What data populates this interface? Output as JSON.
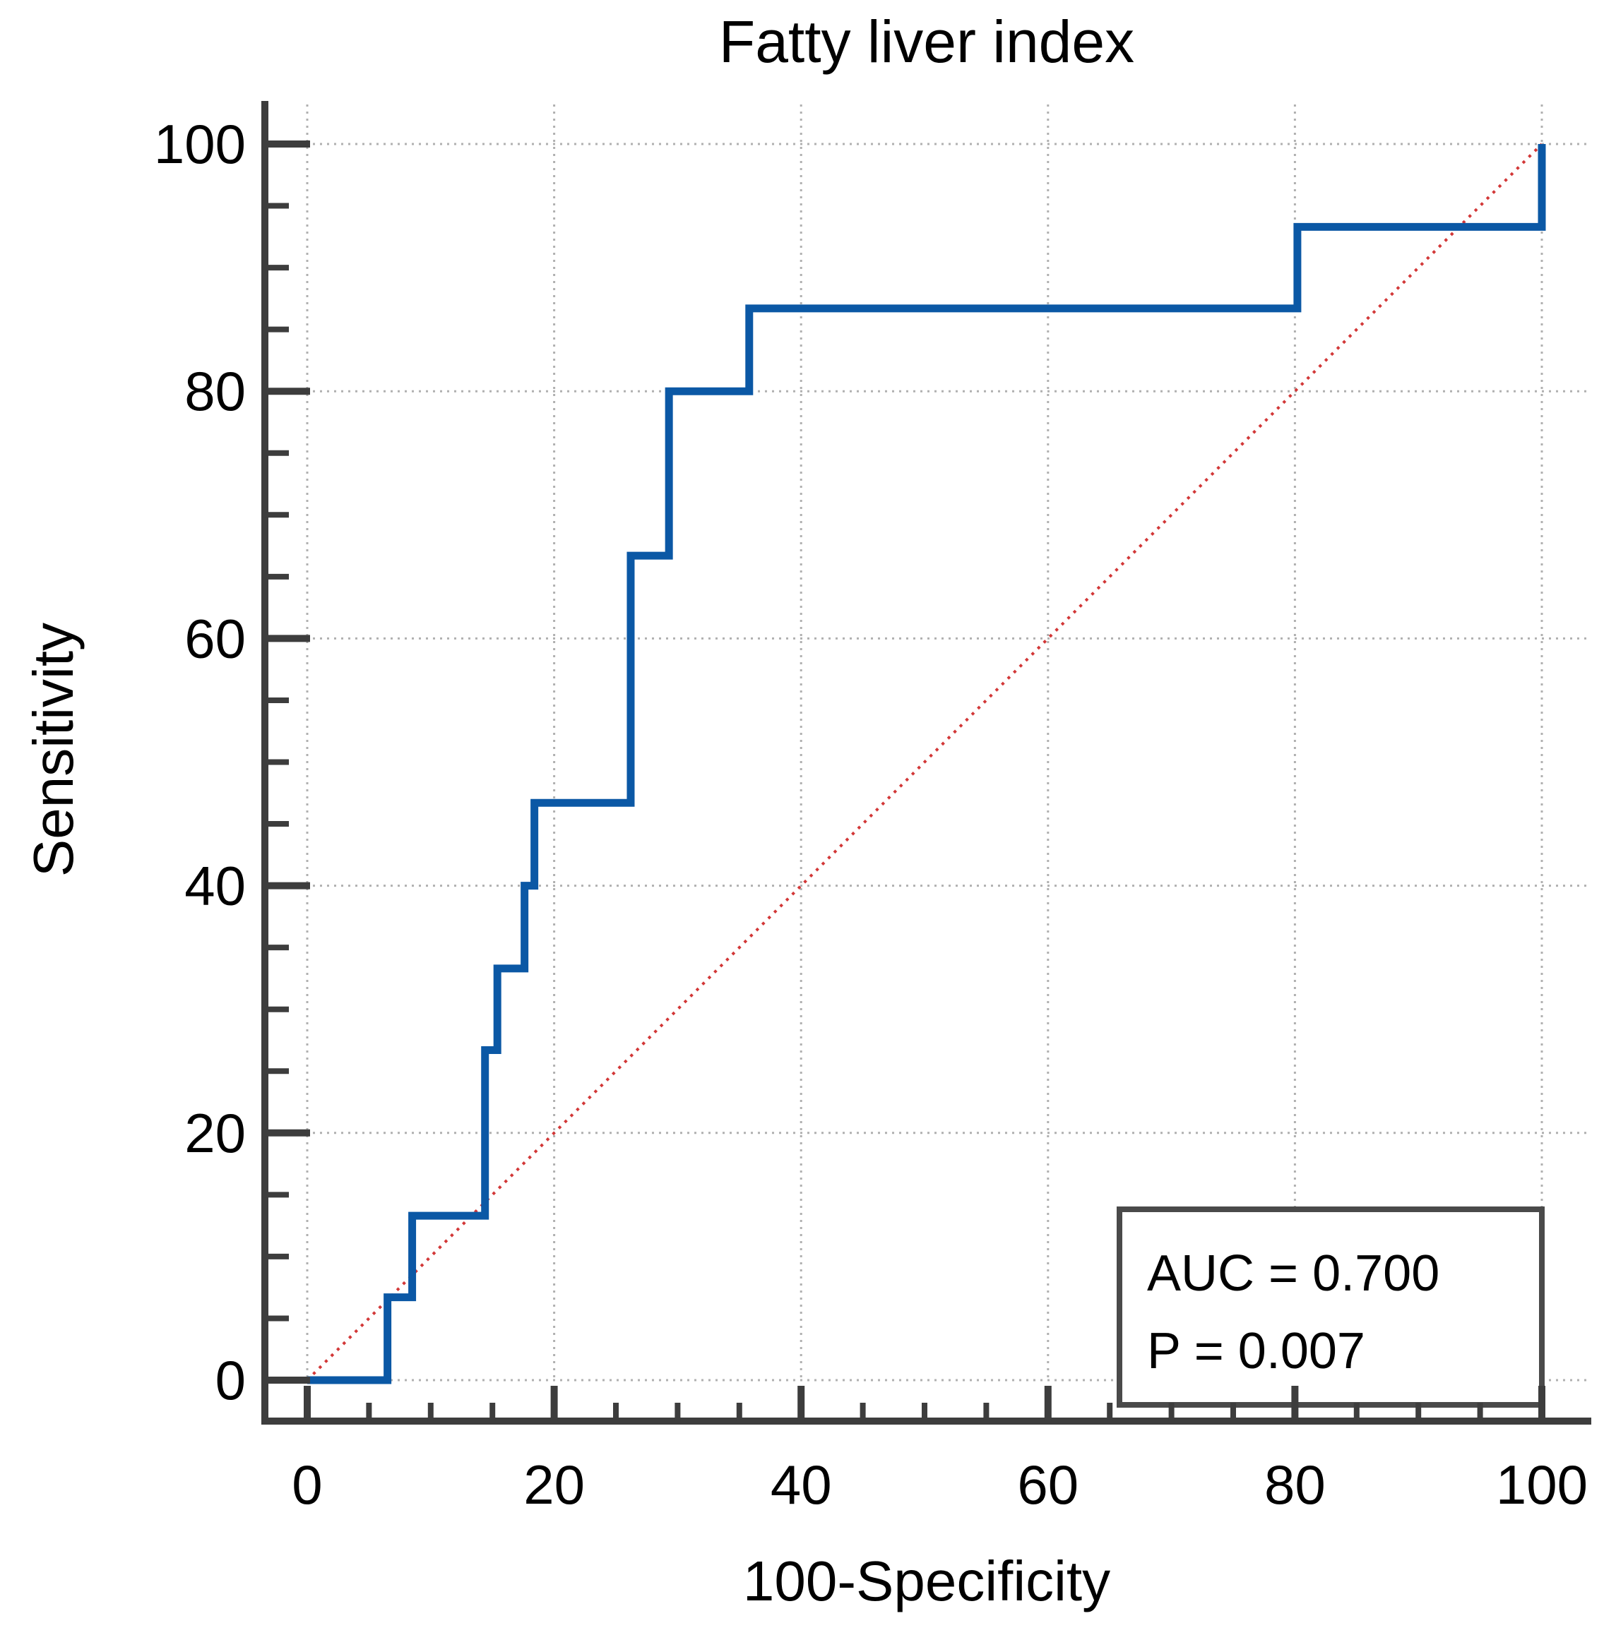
{
  "chart_data": {
    "type": "line",
    "subtype": "roc-step-curve",
    "title": "Fatty liver index",
    "xlabel": "100-Specificity",
    "ylabel": "Sensitivity",
    "xlim": [
      0,
      100
    ],
    "ylim": [
      0,
      100
    ],
    "x_ticks": [
      0,
      20,
      40,
      60,
      80,
      100
    ],
    "y_ticks": [
      0,
      20,
      40,
      60,
      80,
      100
    ],
    "x_tick_labels": [
      "0",
      "20",
      "40",
      "60",
      "80",
      "100"
    ],
    "y_tick_labels": [
      "0",
      "20",
      "40",
      "60",
      "80",
      "100"
    ],
    "minor_tick_step": 5,
    "grid": "dotted",
    "legend_position": "none",
    "series": [
      {
        "name": "ROC curve",
        "type": "step",
        "color": "#0b58a5",
        "points": [
          [
            0,
            0
          ],
          [
            6.5,
            0
          ],
          [
            6.5,
            6.7
          ],
          [
            8.5,
            6.7
          ],
          [
            8.5,
            13.3
          ],
          [
            14.4,
            13.3
          ],
          [
            14.4,
            26.7
          ],
          [
            15.4,
            26.7
          ],
          [
            15.4,
            33.3
          ],
          [
            17.6,
            33.3
          ],
          [
            17.6,
            40
          ],
          [
            18.4,
            40
          ],
          [
            18.4,
            46.7
          ],
          [
            26.2,
            46.7
          ],
          [
            26.2,
            66.7
          ],
          [
            29.3,
            66.7
          ],
          [
            29.3,
            80
          ],
          [
            35.8,
            80
          ],
          [
            35.8,
            86.7
          ],
          [
            80.2,
            86.7
          ],
          [
            80.2,
            93.3
          ],
          [
            100,
            93.3
          ],
          [
            100,
            100
          ]
        ]
      },
      {
        "name": "Reference diagonal",
        "type": "line",
        "style": "dotted",
        "color": "#d23737",
        "points": [
          [
            0,
            0
          ],
          [
            100,
            100
          ]
        ]
      }
    ],
    "annotation_box": {
      "auc_label": "AUC = 0.700",
      "p_label": "P = 0.007"
    }
  },
  "colors": {
    "curve_blue": "#0b58a5",
    "diagonal_red": "#d23737",
    "axis_gray": "#3d3d3d",
    "grid_gray": "#b0b0b0",
    "box_border_gray": "#4a4a4a",
    "background": "#ffffff",
    "text": "#000000"
  }
}
